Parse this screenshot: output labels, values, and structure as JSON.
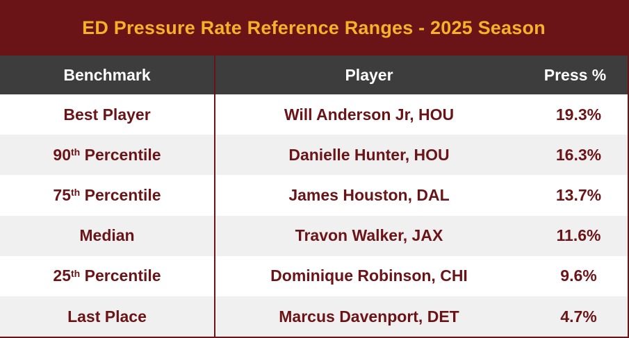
{
  "title": "ED Pressure Rate Reference Ranges - 2025 Season",
  "colors": {
    "title_bg": "#6b1418",
    "title_text": "#f5b12a",
    "header_bg": "#3d3d3d",
    "body_text": "#6b1418",
    "row_alt": "#f0f0f0"
  },
  "chart_data": {
    "type": "table",
    "columns": [
      "Benchmark",
      "Player",
      "Press %"
    ],
    "rows": [
      {
        "benchmark": "Best Player",
        "sup": "",
        "suffix": "",
        "player": "Will Anderson Jr, HOU",
        "press": "19.3%"
      },
      {
        "benchmark": "90",
        "sup": "th",
        "suffix": " Percentile",
        "player": "Danielle Hunter, HOU",
        "press": "16.3%"
      },
      {
        "benchmark": "75",
        "sup": "th",
        "suffix": " Percentile",
        "player": "James Houston, DAL",
        "press": "13.7%"
      },
      {
        "benchmark": "Median",
        "sup": "",
        "suffix": "",
        "player": "Travon Walker, JAX",
        "press": "11.6%"
      },
      {
        "benchmark": "25",
        "sup": "th",
        "suffix": " Percentile",
        "player": "Dominique Robinson, CHI",
        "press": "9.6%"
      },
      {
        "benchmark": "Last Place",
        "sup": "",
        "suffix": "",
        "player": "Marcus Davenport, DET",
        "press": "4.7%"
      }
    ]
  }
}
